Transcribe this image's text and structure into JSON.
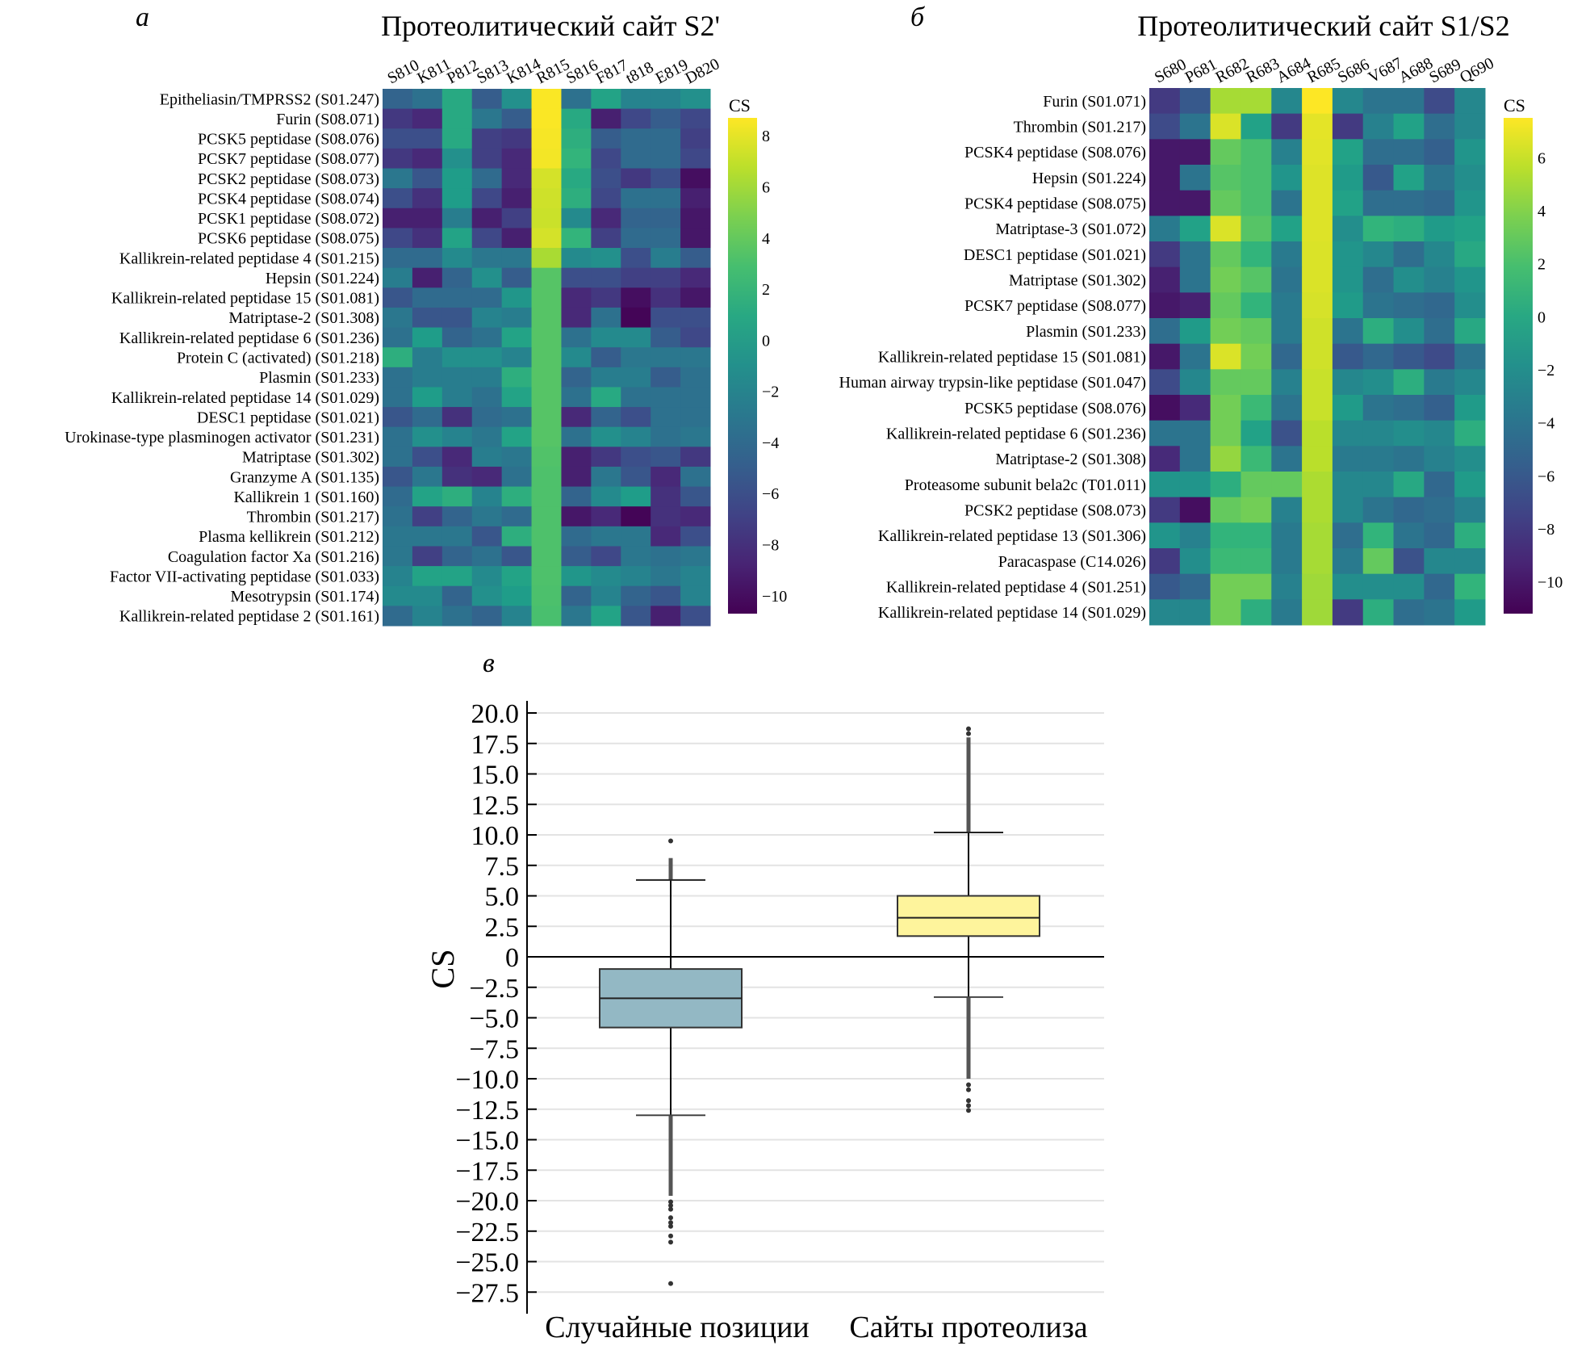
{
  "figure": {
    "panels": [
      "а",
      "б",
      "в"
    ]
  },
  "chart_data": [
    {
      "type": "heatmap",
      "panel": "а",
      "title": "Протеолитический сайт S2'",
      "colorbar_label": "CS",
      "colorbar_ticks": [
        "8",
        "6",
        "4",
        "2",
        "0",
        "−2",
        "−4",
        "−6",
        "−8",
        "−10"
      ],
      "colorbar_tick_values": [
        8,
        6,
        4,
        2,
        0,
        -2,
        -4,
        -6,
        -8,
        -10
      ],
      "vrange": [
        -10.7,
        8.7
      ],
      "colormap": "viridis",
      "columns": [
        "S810",
        "K811",
        "P812",
        "S813",
        "K814",
        "R815",
        "S816",
        "F817",
        "t818",
        "E819",
        "D820"
      ],
      "rows": [
        "Epitheliasin/TMPRSS2 (S01.247)",
        "Furin (S08.071)",
        "PCSK5 peptidase (S08.076)",
        "PCSK7 peptidase (S08.077)",
        "PCSK2 peptidase (S08.073)",
        "PCSK4 peptidase (S08.074)",
        "PCSK1 peptidase (S08.072)",
        "PCSK6 peptidase (S08.075)",
        "Kallikrein-related peptidase 4 (S01.215)",
        "Hepsin (S01.224)",
        "Kallikrein-related peptidase 15 (S01.081)",
        "Matriptase-2 (S01.308)",
        "Kallikrein-related peptidase 6 (S01.236)",
        "Protein C (activated) (S01.218)",
        "Plasmin (S01.233)",
        "Kallikrein-related peptidase 14 (S01.029)",
        "DESC1 peptidase (S01.021)",
        "Urokinase-type plasminogen activator (S01.231)",
        "Matriptase (S01.302)",
        "Granzyme A (S01.135)",
        "Kallikrein 1 (S01.160)",
        "Thrombin (S01.217)",
        "Plasma kellikrein (S01.212)",
        "Coagulation factor Xa (S01.216)",
        "Factor VII-activating peptidase (S01.033)",
        "Mesotrypsin (S01.174)",
        "Kallikrein-related peptidase 2 (S01.161)"
      ],
      "values": [
        [
          -4.5,
          -3.5,
          1.0,
          -5.0,
          -1.0,
          8.6,
          -3.5,
          0.5,
          -2.0,
          -2.0,
          -1.0
        ],
        [
          -7.5,
          -8.5,
          1.0,
          -3.0,
          -5.0,
          8.6,
          1.0,
          -9.0,
          -6.5,
          -5.0,
          -6.5
        ],
        [
          -6.0,
          -6.0,
          1.0,
          -7.0,
          -7.5,
          8.5,
          1.5,
          -5.0,
          -4.0,
          -4.0,
          -7.0
        ],
        [
          -7.5,
          -8.5,
          -1.0,
          -7.0,
          -8.5,
          8.4,
          2.0,
          -6.5,
          -4.0,
          -4.0,
          -6.5
        ],
        [
          -3.0,
          -5.5,
          0.0,
          -4.0,
          -8.5,
          7.5,
          1.0,
          -6.0,
          -7.5,
          -6.0,
          -10.0
        ],
        [
          -6.0,
          -8.0,
          0.0,
          -6.5,
          -9.0,
          7.3,
          1.5,
          -6.5,
          -3.5,
          -3.5,
          -9.0
        ],
        [
          -9.0,
          -9.0,
          -2.5,
          -9.0,
          -7.0,
          7.2,
          -1.5,
          -8.5,
          -4.5,
          -4.5,
          -9.5
        ],
        [
          -6.5,
          -8.0,
          0.5,
          -6.5,
          -9.0,
          7.5,
          2.0,
          -7.0,
          -4.0,
          -4.0,
          -9.5
        ],
        [
          -4.0,
          -4.0,
          -1.5,
          -3.0,
          -3.0,
          6.2,
          -1.5,
          -1.0,
          -6.0,
          -2.5,
          -5.0
        ],
        [
          -2.5,
          -9.0,
          -4.5,
          -1.0,
          -5.0,
          3.5,
          -6.0,
          -6.0,
          -7.0,
          -7.0,
          -8.5
        ],
        [
          -5.5,
          -4.0,
          -4.0,
          -4.0,
          -0.5,
          3.5,
          -8.5,
          -7.5,
          -10.0,
          -8.0,
          -9.5
        ],
        [
          -3.0,
          -5.5,
          -5.5,
          -2.0,
          -2.5,
          3.5,
          -8.5,
          -3.5,
          -10.5,
          -6.0,
          -6.0
        ],
        [
          -3.5,
          0.0,
          -4.5,
          -3.5,
          0.5,
          3.5,
          -3.5,
          -1.5,
          -1.5,
          -5.0,
          -6.5
        ],
        [
          1.5,
          -2.5,
          -1.0,
          -1.0,
          -2.0,
          3.5,
          -1.5,
          -5.0,
          -3.0,
          -3.0,
          -3.0
        ],
        [
          -3.5,
          -2.5,
          -2.5,
          -2.5,
          1.5,
          3.5,
          -4.5,
          -2.5,
          -2.5,
          -5.0,
          -3.5
        ],
        [
          -3.5,
          0.0,
          -2.5,
          -3.5,
          0.5,
          3.5,
          -3.5,
          1.0,
          -3.5,
          -3.5,
          -3.5
        ],
        [
          -5.5,
          -4.0,
          -8.0,
          -4.0,
          -3.5,
          3.5,
          -8.5,
          -4.5,
          -6.0,
          -3.5,
          -3.5
        ],
        [
          -3.5,
          -1.0,
          -2.0,
          -3.0,
          0.5,
          3.5,
          -3.5,
          -1.0,
          -2.0,
          -3.5,
          -3.0
        ],
        [
          -3.5,
          -6.0,
          -8.5,
          -2.5,
          -3.0,
          3.3,
          -9.0,
          -7.5,
          -6.0,
          -5.5,
          -7.5
        ],
        [
          -5.5,
          -3.0,
          -8.0,
          -8.5,
          -3.5,
          3.2,
          -9.0,
          -3.0,
          -5.5,
          -8.5,
          -3.5
        ],
        [
          -4.0,
          0.5,
          1.5,
          -2.0,
          1.5,
          3.2,
          -4.5,
          -1.5,
          0.0,
          -8.0,
          -5.5
        ],
        [
          -3.5,
          -7.0,
          -4.5,
          -3.0,
          -4.0,
          3.2,
          -9.5,
          -8.5,
          -10.5,
          -8.0,
          -8.5
        ],
        [
          -3.0,
          -3.0,
          -3.0,
          -5.5,
          1.5,
          3.2,
          -4.0,
          -3.0,
          -3.0,
          -8.5,
          -6.0
        ],
        [
          -3.0,
          -7.0,
          -4.5,
          -3.5,
          -5.5,
          3.2,
          -5.0,
          -6.5,
          -3.0,
          -3.5,
          -3.0
        ],
        [
          -2.0,
          0.5,
          0.5,
          -1.5,
          0.5,
          3.2,
          -0.5,
          -1.5,
          -2.0,
          -3.0,
          -2.0
        ],
        [
          -1.5,
          -1.5,
          -4.5,
          -1.0,
          0.0,
          3.1,
          -4.5,
          -2.0,
          -4.5,
          -5.5,
          -2.0
        ],
        [
          -4.0,
          -2.0,
          -3.5,
          -4.5,
          -2.0,
          3.0,
          -3.0,
          0.5,
          -5.5,
          -9.0,
          -6.0
        ]
      ]
    },
    {
      "type": "heatmap",
      "panel": "б",
      "title": "Протеолитический сайт S1/S2",
      "colorbar_label": "CS",
      "colorbar_ticks": [
        "6",
        "4",
        "2",
        "0",
        "−2",
        "−4",
        "−6",
        "−8",
        "−10"
      ],
      "colorbar_tick_values": [
        6,
        4,
        2,
        0,
        -2,
        -4,
        -6,
        -8,
        -10
      ],
      "vrange": [
        -11.2,
        7.5
      ],
      "colormap": "viridis",
      "columns": [
        "S680",
        "P681",
        "R682",
        "R683",
        "A684",
        "R685",
        "S686",
        "V687",
        "A688",
        "S689",
        "Q690"
      ],
      "rows": [
        "Furin (S01.071)",
        "Thrombin (S01.217)",
        "PCSK4 peptidase (S08.076)",
        "Hepsin (S01.224)",
        "PCSK4 peptidase (S08.075)",
        "Matriptase-3 (S01.072)",
        "DESC1 peptidase (S01.021)",
        "Matriptase (S01.302)",
        "PCSK7 peptidase (S08.077)",
        "Plasmin (S01.233)",
        "Kallikrein-related peptidase 15 (S01.081)",
        "Human airway trypsin-like peptidase (S01.047)",
        "PCSK5 peptidase (S08.076)",
        "Kallikrein-related peptidase 6 (S01.236)",
        "Matriptase-2 (S01.308)",
        "Proteasome subunit bela2c (T01.011)",
        "PCSK2 peptidase (S08.073)",
        "Kallikrein-related peptidase 13 (S01.306)",
        "Paracaspase (C14.026)",
        "Kallikrein-related peptidase 4 (S01.251)",
        "Kallikrein-related peptidase 14 (S01.029)"
      ],
      "values": [
        [
          -8.0,
          -6.0,
          5.0,
          5.0,
          -2.5,
          7.5,
          -2.5,
          -4.0,
          -4.0,
          -7.0,
          -2.5
        ],
        [
          -7.0,
          -4.0,
          6.5,
          -0.5,
          -8.0,
          6.8,
          -8.0,
          -3.0,
          -0.5,
          -4.5,
          -2.5
        ],
        [
          -10.0,
          -10.0,
          3.0,
          2.0,
          -3.0,
          6.7,
          -0.5,
          -4.5,
          -4.5,
          -5.5,
          -1.5
        ],
        [
          -10.0,
          -4.0,
          2.5,
          2.0,
          -1.5,
          6.6,
          -1.0,
          -6.0,
          -0.5,
          -4.0,
          -2.0
        ],
        [
          -10.0,
          -10.0,
          3.0,
          2.0,
          -4.0,
          6.6,
          -0.5,
          -4.5,
          -4.5,
          -5.0,
          -1.5
        ],
        [
          -3.5,
          -0.5,
          6.5,
          2.5,
          -0.5,
          6.6,
          -2.0,
          1.0,
          0.5,
          -1.0,
          -0.5
        ],
        [
          -8.0,
          -4.0,
          3.0,
          1.0,
          -3.5,
          6.5,
          -1.5,
          -2.5,
          -4.5,
          -2.5,
          0.0
        ],
        [
          -9.5,
          -4.0,
          3.5,
          2.5,
          -4.0,
          6.5,
          -1.5,
          -4.5,
          -2.0,
          -3.0,
          -1.5
        ],
        [
          -10.0,
          -9.5,
          3.0,
          1.0,
          -3.5,
          6.4,
          -1.0,
          -4.0,
          -4.5,
          -5.0,
          -2.0
        ],
        [
          -4.5,
          -1.0,
          3.5,
          3.0,
          -3.5,
          6.2,
          -4.0,
          0.5,
          -2.0,
          -4.5,
          0.0
        ],
        [
          -10.0,
          -4.0,
          6.5,
          3.5,
          -5.0,
          6.2,
          -6.0,
          -5.0,
          -6.0,
          -7.0,
          -4.0
        ],
        [
          -7.0,
          -2.5,
          3.0,
          3.0,
          -3.0,
          6.0,
          -2.5,
          -2.0,
          0.5,
          -3.5,
          -2.5
        ],
        [
          -10.5,
          -9.0,
          3.5,
          1.5,
          -4.0,
          6.0,
          -1.0,
          -4.0,
          -4.5,
          -5.5,
          -1.0
        ],
        [
          -4.0,
          -4.0,
          3.5,
          -0.5,
          -6.5,
          5.6,
          -2.5,
          -2.5,
          -2.0,
          -2.5,
          0.5
        ],
        [
          -9.0,
          -4.0,
          4.5,
          1.5,
          -4.0,
          5.6,
          -3.5,
          -3.5,
          -4.0,
          -3.0,
          -2.0
        ],
        [
          -1.5,
          -1.5,
          0.5,
          3.0,
          3.0,
          5.2,
          -2.5,
          -2.5,
          0.0,
          -5.0,
          -1.0
        ],
        [
          -8.0,
          -10.5,
          3.0,
          3.5,
          -3.0,
          5.2,
          -2.5,
          -4.0,
          -5.0,
          -4.5,
          -3.0
        ],
        [
          -1.5,
          -3.0,
          1.0,
          1.0,
          -3.5,
          5.0,
          -4.5,
          1.0,
          -4.0,
          -5.0,
          0.5
        ],
        [
          -8.0,
          -2.0,
          1.5,
          1.5,
          -3.5,
          5.0,
          -3.5,
          3.0,
          -6.5,
          -2.5,
          -2.5
        ],
        [
          -6.0,
          -5.0,
          3.5,
          3.5,
          -3.0,
          4.8,
          -2.0,
          -2.0,
          -2.0,
          -5.0,
          1.0
        ],
        [
          -2.5,
          -2.5,
          3.5,
          0.5,
          -3.5,
          4.8,
          -8.0,
          0.5,
          -4.5,
          -4.0,
          -1.0
        ]
      ]
    },
    {
      "type": "box",
      "panel": "в",
      "title": "",
      "xlabel": "",
      "ylabel": "CS",
      "ylim": [
        -29.5,
        21
      ],
      "yticks": [
        20.0,
        17.5,
        15.0,
        12.5,
        10.0,
        7.5,
        5.0,
        2.5,
        0,
        -2.5,
        -5.0,
        -7.5,
        -10.0,
        -12.5,
        -15.0,
        -17.5,
        -20.0,
        -22.5,
        -25.0,
        -27.5
      ],
      "ytick_labels": [
        "20.0",
        "17.5",
        "15.0",
        "12.5",
        "10.0",
        "7.5",
        "5.0",
        "2.5",
        "0",
        "−2.5",
        "−5.0",
        "−7.5",
        "−10.0",
        "−12.5",
        "−15.0",
        "−17.5",
        "−20.0",
        "−22.5",
        "−25.0",
        "−27.5"
      ],
      "grid": true,
      "zero_line": true,
      "categories": [
        "Случайные позиции",
        "Сайты протеолиза"
      ],
      "series": [
        {
          "name": "Случайные позиции",
          "color": "#93b8c4",
          "q1": -5.8,
          "median": -3.4,
          "q3": -1.0,
          "whisker_low": -13.0,
          "whisker_high": 6.3,
          "outliers_dense_ranges": [
            [
              6.3,
              8.1
            ],
            [
              -13.0,
              -19.6
            ]
          ],
          "outliers": [
            9.5,
            -20.1,
            -20.4,
            -20.7,
            -21.4,
            -21.8,
            -22.1,
            -22.9,
            -23.4,
            -26.8
          ]
        },
        {
          "name": "Сайты протеолиза",
          "color": "#fef49c",
          "q1": 1.7,
          "median": 3.2,
          "q3": 5.0,
          "whisker_low": -3.3,
          "whisker_high": 10.2,
          "outliers_dense_ranges": [
            [
              10.2,
              18.0
            ],
            [
              -3.3,
              -10.0
            ]
          ],
          "outliers": [
            18.7,
            18.3,
            -10.5,
            -10.9,
            -11.8,
            -12.2,
            -12.6
          ]
        }
      ]
    }
  ]
}
